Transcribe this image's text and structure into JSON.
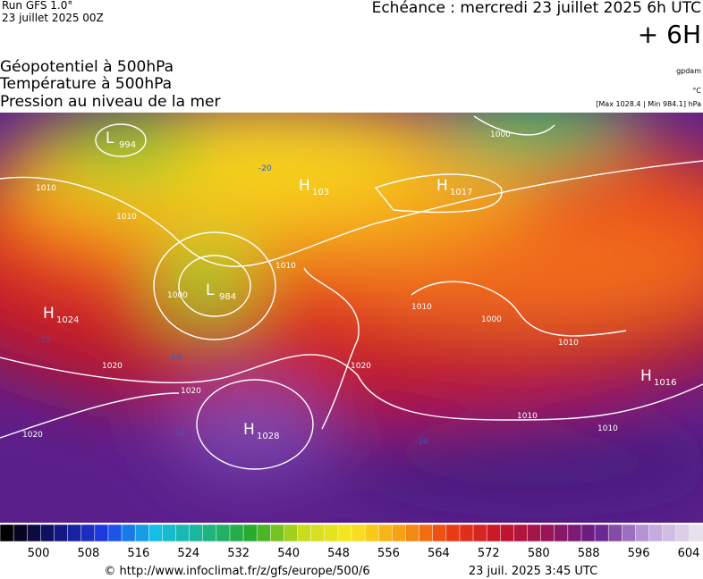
{
  "header": {
    "run": "Run GFS 1.0°",
    "run_date": "23 juillet 2025 00Z",
    "valid": "Echéance : mercredi 23 juillet 2025 6h UTC",
    "lead": "+ 6H"
  },
  "legend": {
    "fields": [
      "Géopotentiel à 500hPa",
      "Température à 500hPa",
      "Pression au niveau de la mer"
    ],
    "units": [
      "gpdam",
      "°C",
      "[Max 1028.4 | Min 984.1] hPa"
    ]
  },
  "centers": [
    {
      "letter": "L",
      "value": "994"
    },
    {
      "letter": "H",
      "value": "103"
    },
    {
      "letter": "H",
      "value": "1017"
    },
    {
      "letter": "L",
      "value": "984"
    },
    {
      "letter": "H",
      "value": "1024"
    },
    {
      "letter": "H",
      "value": "1028"
    },
    {
      "letter": "H",
      "value": "1016"
    }
  ],
  "isobar_labels": [
    "1010",
    "1010",
    "1000",
    "1020",
    "1020",
    "1020",
    "1020",
    "1010",
    "1010",
    "1010",
    "1010",
    "1000",
    "1010",
    "1000"
  ],
  "temperature_labels": [
    "-10",
    "-10",
    "-20",
    "-10",
    "-10"
  ],
  "colorbar": {
    "labels": [
      500,
      508,
      516,
      524,
      532,
      540,
      548,
      556,
      564,
      572,
      580,
      588,
      596,
      604
    ]
  },
  "footer": {
    "source": "© http://www.infoclimat.fr/z/gfs/europe/500/6",
    "generated": "23 juil. 2025  3:45 UTC"
  }
}
